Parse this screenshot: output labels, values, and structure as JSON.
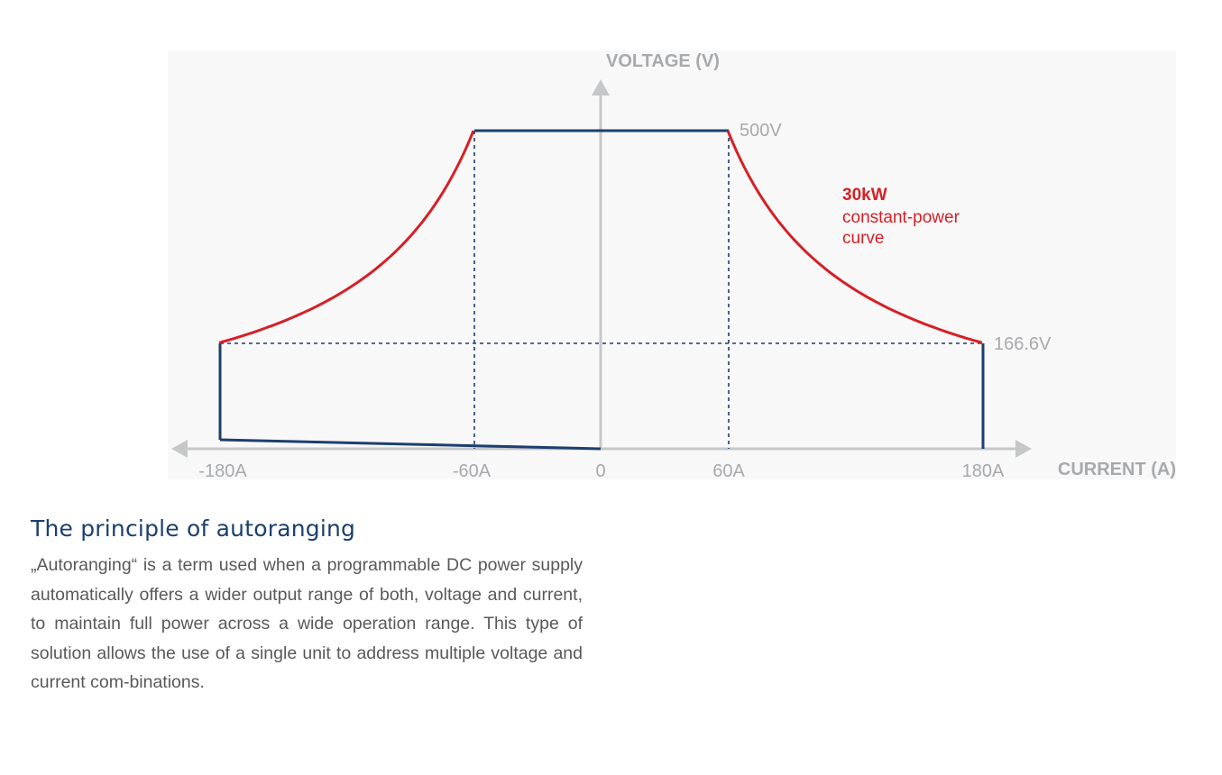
{
  "diagram": {
    "y_axis_label": "VOLTAGE (V)",
    "x_axis_label": "CURRENT (A)",
    "x_ticks": [
      "-180A",
      "-60A",
      "0",
      "60A",
      "180A"
    ],
    "v_max_label": "500V",
    "v_min_label": "166.6V",
    "power_label": "30kW",
    "curve_label_line1": "constant-power",
    "curve_label_line2": "curve",
    "colors": {
      "axis": "#c6c7c9",
      "outline": "#1c3f6e",
      "curve": "#d62027",
      "label_gray": "#a7a9ac",
      "heading": "#1c3f6e",
      "text": "#58595b"
    }
  },
  "chart_data": {
    "type": "line",
    "xlabel": "CURRENT (A)",
    "ylabel": "VOLTAGE (V)",
    "x_ticks": [
      -180,
      -60,
      0,
      60,
      180
    ],
    "power_kw": 30,
    "series": [
      {
        "name": "constant-power curve",
        "x": [
          60,
          90,
          120,
          150,
          180
        ],
        "y": [
          500,
          333.3,
          250,
          200,
          166.6
        ]
      },
      {
        "name": "",
        "x": [
          -180,
          -150,
          -120,
          -90,
          -60
        ],
        "y": [
          166.6,
          200,
          250,
          333.3,
          500
        ]
      }
    ],
    "reference_levels": {
      "v_max": 500,
      "v_min": 166.6,
      "i_corner": 60,
      "i_max": 180
    }
  },
  "section": {
    "heading": "The principle of autoranging",
    "body": "„Autoranging“ is a term used when a programmable DC power supply automatically offers a wider output range of both, voltage and current, to maintain full power across a wide operation range. This type of solution allows the use of a single unit to address multiple voltage and current com-binations."
  }
}
